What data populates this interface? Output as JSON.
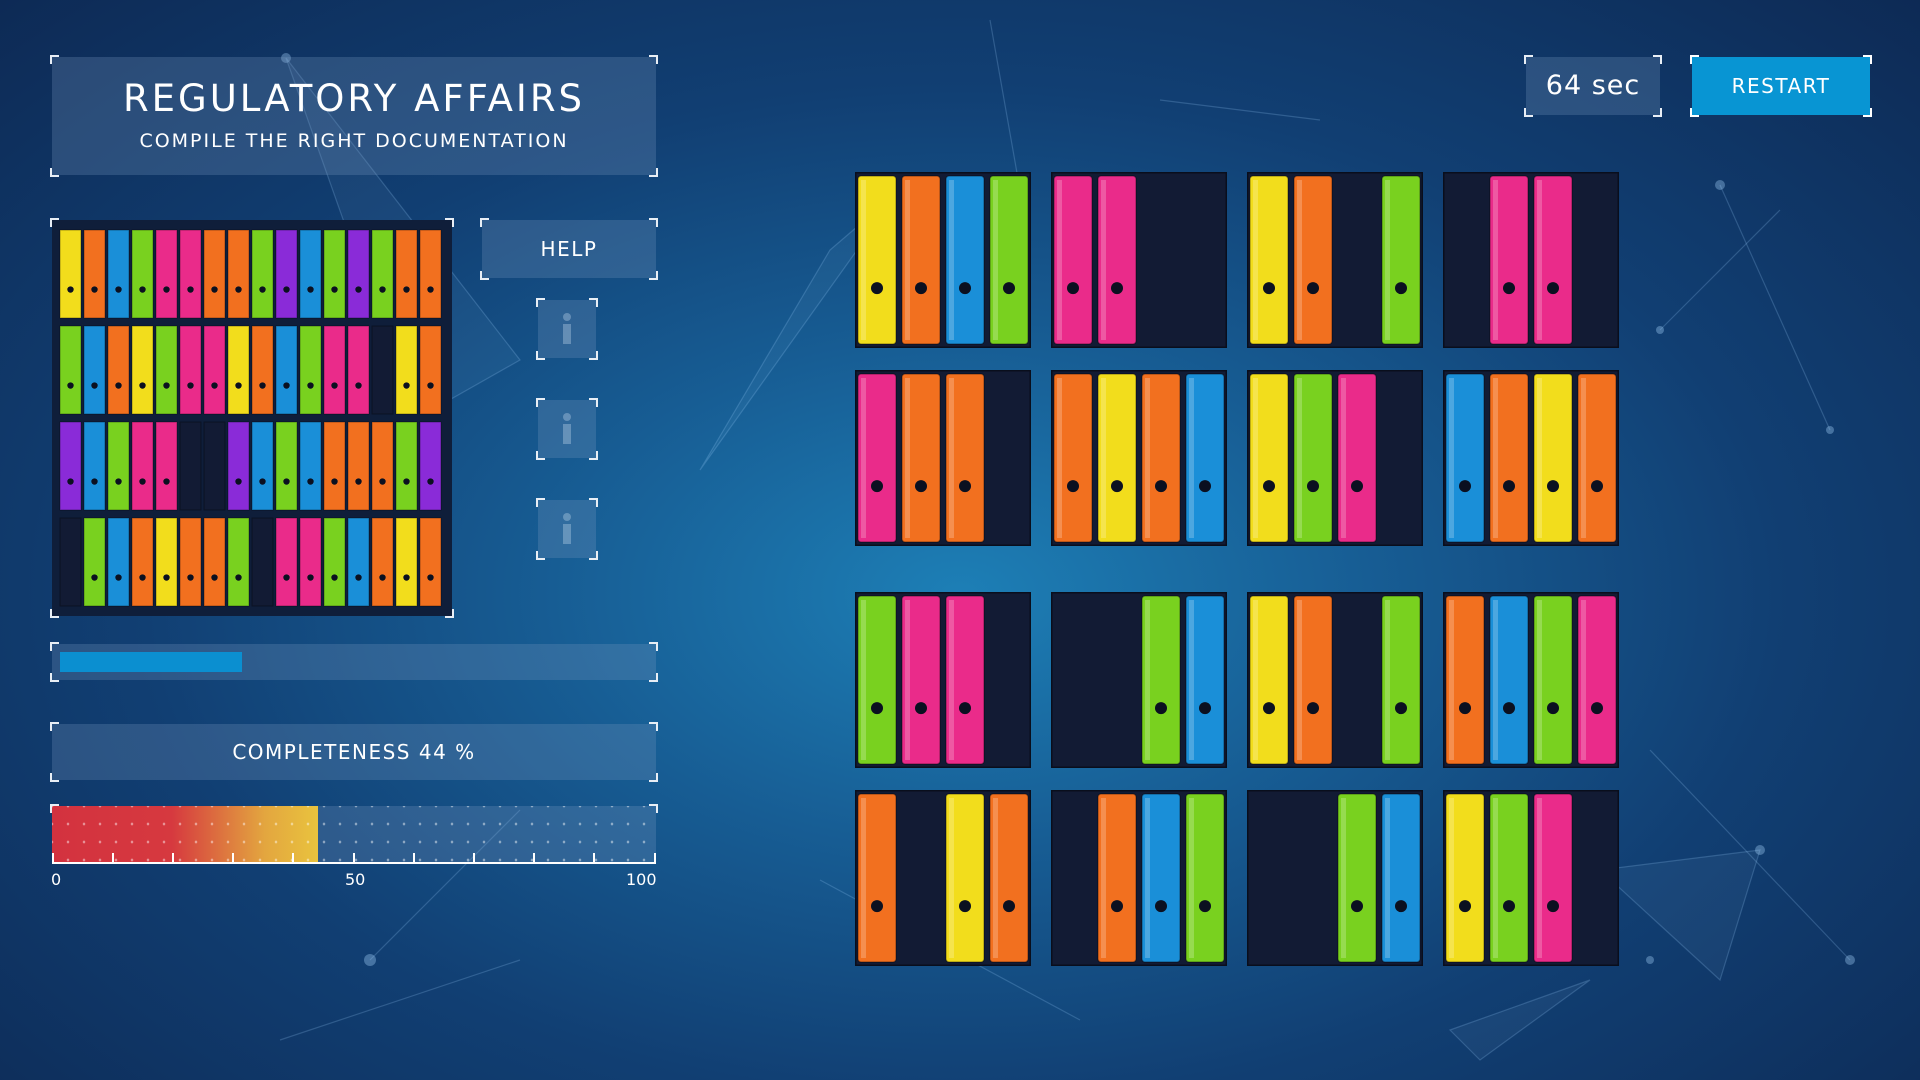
{
  "header": {
    "title": "REGULATORY AFFAIRS",
    "subtitle": "COMPILE THE RIGHT DOCUMENTATION"
  },
  "timer": {
    "text": "64 sec"
  },
  "restart": {
    "label": "RESTART"
  },
  "help": {
    "label": "HELP"
  },
  "info_buttons": [
    "info-icon",
    "info-icon",
    "info-icon"
  ],
  "progress": {
    "fraction": 0.31
  },
  "completeness": {
    "label": "COMPLETENESS 44 %",
    "value": 44,
    "min": 0,
    "max": 100,
    "ticks": [
      "0",
      "50",
      "100"
    ]
  },
  "colors": {
    "yellow": "#f2dd1c",
    "orange": "#f2701f",
    "blue": "#1a8fd8",
    "green": "#79d11f",
    "pink": "#ea2b8a",
    "purple": "#8a2bd8",
    "navy": "#121b34",
    "accent": "#0895d3"
  },
  "target_shelf": [
    [
      "yellow",
      "orange",
      "blue",
      "green",
      "pink",
      "pink",
      "orange",
      "orange",
      "green",
      "purple",
      "blue",
      "green",
      "purple",
      "green",
      "orange",
      "orange"
    ],
    [
      "green",
      "blue",
      "orange",
      "yellow",
      "green",
      "pink",
      "pink",
      "yellow",
      "orange",
      "blue",
      "green",
      "pink",
      "pink",
      "navy",
      "yellow",
      "orange"
    ],
    [
      "purple",
      "blue",
      "green",
      "pink",
      "pink",
      "navy",
      "navy",
      "purple",
      "blue",
      "green",
      "blue",
      "orange",
      "orange",
      "orange",
      "green",
      "purple"
    ],
    [
      "navy",
      "green",
      "blue",
      "orange",
      "yellow",
      "orange",
      "orange",
      "green",
      "navy",
      "pink",
      "pink",
      "green",
      "blue",
      "orange",
      "yellow",
      "orange"
    ]
  ],
  "puzzle_tiles": [
    [
      [
        "yellow",
        "orange",
        "blue",
        "green"
      ],
      [
        "pink",
        "pink",
        "navy",
        "navy"
      ],
      [
        "yellow",
        "orange",
        "navy",
        "green"
      ],
      [
        "navy",
        "pink",
        "pink",
        "navy"
      ]
    ],
    [
      [
        "pink",
        "orange",
        "orange",
        "navy"
      ],
      [
        "orange",
        "yellow",
        "orange",
        "blue"
      ],
      [
        "yellow",
        "green",
        "pink",
        "navy"
      ],
      [
        "blue",
        "orange",
        "yellow",
        "orange"
      ]
    ],
    [
      [
        "green",
        "pink",
        "pink",
        "navy"
      ],
      [
        "navy",
        "navy",
        "green",
        "blue"
      ],
      [
        "yellow",
        "orange",
        "navy",
        "green"
      ],
      [
        "orange",
        "blue",
        "green",
        "pink"
      ]
    ],
    [
      [
        "orange",
        "navy",
        "yellow",
        "orange"
      ],
      [
        "navy",
        "orange",
        "blue",
        "green"
      ],
      [
        "navy",
        "navy",
        "green",
        "blue"
      ],
      [
        "yellow",
        "green",
        "pink",
        "navy"
      ]
    ]
  ]
}
